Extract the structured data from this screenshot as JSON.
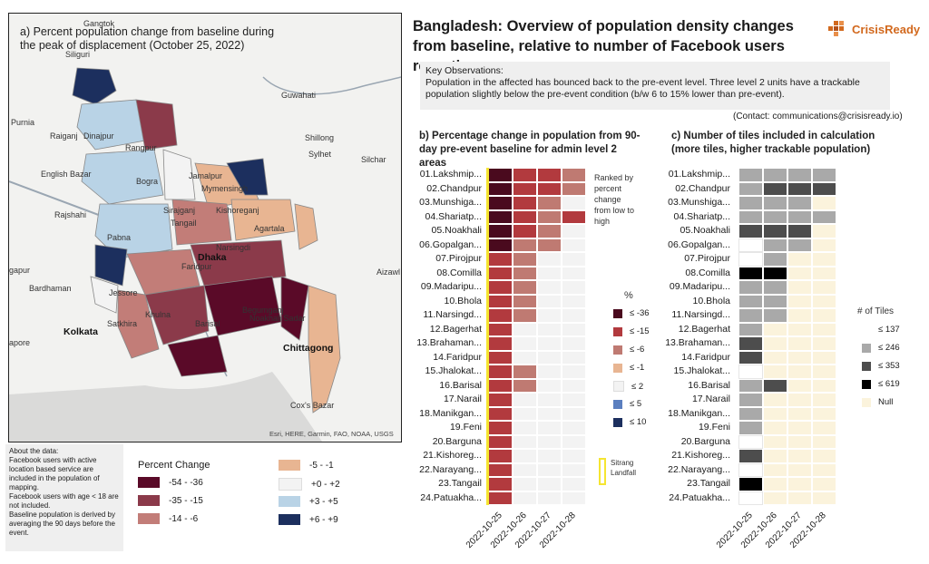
{
  "title": "Bangladesh: Overview of population density changes from baseline, relative to number of Facebook users reporting",
  "logo": {
    "text": "CrisisReady",
    "color": "#d2691e"
  },
  "observations": {
    "heading": "Key Observations:",
    "text": "Population in the affected has bounced back to the pre-event level. Three level 2 units have a trackable population slightly below the pre-event condition (b/w 6 to 15% lower than pre-event)."
  },
  "contact": "(Contact: communications@crisisready.io)",
  "map": {
    "title": "a) Percent population change from baseline during the peak of displacement (October 25, 2022)",
    "labels": [
      "Gangtok",
      "Siliguri",
      "Guwahati",
      "Purnia",
      "Rangpur",
      "Shillong",
      "Raiganj",
      "Dinajpur",
      "English Bazar",
      "Jamalpur",
      "Sylhet",
      "Silchar",
      "Bogra",
      "Mymensingh",
      "Rajshahi",
      "Sirajganj",
      "Tangail",
      "Kishoreganj",
      "Narsingdi",
      "Agartala",
      "Aizawl",
      "Pabna",
      "Dhaka",
      "Faridpur",
      "Jessore",
      "Bardhaman",
      "Khulna",
      "Begumganj",
      "Noakhali Sadar",
      "Satkhira",
      "Barisal",
      "Kolkata",
      "Chittagong",
      "Cox's Bazar",
      "gapur",
      "apore"
    ],
    "credit": "Esri, HERE, Garmin, FAO, NOAA, USGS",
    "legend_title": "Percent Change",
    "legend": [
      {
        "label": "-54 - -36",
        "color": "#5a0a28"
      },
      {
        "label": "-35 - -15",
        "color": "#8b3a4a"
      },
      {
        "label": "-14 - -6",
        "color": "#c27d78"
      },
      {
        "label": "-5 - -1",
        "color": "#e8b592"
      },
      {
        "label": "+0 - +2",
        "color": "#f3f3f3"
      },
      {
        "label": "+3 - +5",
        "color": "#b9d3e6"
      },
      {
        "label": "+6 - +9",
        "color": "#1c2f5e"
      }
    ]
  },
  "about": {
    "lines": [
      "About the data:",
      "Facebook users with active location based service are included in the population of mapping.",
      "Facebook users with age < 18 are not included.",
      "Baseline population is derived by averaging the 90 days before the event."
    ]
  },
  "chart_data": [
    {
      "type": "heatmap",
      "title": "b) Percentage change in population from 90-day pre-event baseline for admin level 2 areas",
      "rows": [
        "01.Lakshmip...",
        "02.Chandpur",
        "03.Munshiga...",
        "04.Shariatp...",
        "05.Noakhali",
        "06.Gopalgan...",
        "07.Pirojpur",
        "08.Comilla",
        "09.Madaripu...",
        "10.Bhola",
        "11.Narsingd...",
        "12.Bagerhat",
        "13.Brahaman...",
        "14.Faridpur",
        "15.Jhalokat...",
        "16.Barisal",
        "17.Narail",
        "18.Manikgan...",
        "19.Feni",
        "20.Barguna",
        "21.Kishoreg...",
        "22.Narayang...",
        "23.Tangail",
        "24.Patuakha..."
      ],
      "columns": [
        "2022-10-25",
        "2022-10-26",
        "2022-10-27",
        "2022-10-28"
      ],
      "values": [
        [
          -36,
          -15,
          -15,
          -6
        ],
        [
          -36,
          -15,
          -15,
          -6
        ],
        [
          -36,
          -15,
          -6,
          2
        ],
        [
          -36,
          -15,
          -6,
          -15
        ],
        [
          -36,
          -15,
          -6,
          2
        ],
        [
          -36,
          -6,
          -6,
          2
        ],
        [
          -15,
          -6,
          2,
          2
        ],
        [
          -15,
          -6,
          2,
          2
        ],
        [
          -15,
          -6,
          2,
          2
        ],
        [
          -15,
          -6,
          2,
          2
        ],
        [
          -15,
          -6,
          2,
          2
        ],
        [
          -15,
          2,
          2,
          2
        ],
        [
          -15,
          2,
          2,
          2
        ],
        [
          -15,
          2,
          2,
          2
        ],
        [
          -15,
          -6,
          2,
          2
        ],
        [
          -15,
          -6,
          2,
          2
        ],
        [
          -15,
          2,
          2,
          2
        ],
        [
          -15,
          2,
          2,
          2
        ],
        [
          -15,
          2,
          2,
          2
        ],
        [
          -15,
          2,
          2,
          2
        ],
        [
          -15,
          2,
          2,
          2
        ],
        [
          -15,
          2,
          2,
          2
        ],
        [
          -15,
          2,
          2,
          2
        ],
        [
          -15,
          2,
          2,
          2
        ]
      ],
      "note": "Ranked by percent change from low to high",
      "legend_title": "%",
      "legend": [
        {
          "label": "≤ -36",
          "color": "#4a0a1e"
        },
        {
          "label": "≤ -15",
          "color": "#b23a3e"
        },
        {
          "label": "≤ -6",
          "color": "#bf7a72"
        },
        {
          "label": "≤ -1",
          "color": "#e8b592"
        },
        {
          "label": "≤ 2",
          "color": "#f3f3f3"
        },
        {
          "label": "≤ 5",
          "color": "#5b7fbf"
        },
        {
          "label": "≤ 10",
          "color": "#1c2f5e"
        }
      ],
      "landfall_label": "Sitrang Landfall",
      "landfall_color": "#f5e531"
    },
    {
      "type": "heatmap",
      "title": "c) Number of tiles included in calculation (more tiles, higher trackable population)",
      "rows": [
        "01.Lakshmip...",
        "02.Chandpur",
        "03.Munshiga...",
        "04.Shariatp...",
        "05.Noakhali",
        "06.Gopalgan...",
        "07.Pirojpur",
        "08.Comilla",
        "09.Madaripu...",
        "10.Bhola",
        "11.Narsingd...",
        "12.Bagerhat",
        "13.Brahaman...",
        "14.Faridpur",
        "15.Jhalokat...",
        "16.Barisal",
        "17.Narail",
        "18.Manikgan...",
        "19.Feni",
        "20.Barguna",
        "21.Kishoreg...",
        "22.Narayang...",
        "23.Tangail",
        "24.Patuakha..."
      ],
      "columns": [
        "2022-10-25",
        "2022-10-26",
        "2022-10-27",
        "2022-10-28"
      ],
      "values": [
        [
          246,
          246,
          246,
          246
        ],
        [
          246,
          353,
          353,
          353
        ],
        [
          246,
          246,
          246,
          null
        ],
        [
          246,
          246,
          246,
          246
        ],
        [
          353,
          353,
          353,
          null
        ],
        [
          137,
          246,
          246,
          null
        ],
        [
          137,
          246,
          null,
          null
        ],
        [
          619,
          619,
          null,
          null
        ],
        [
          246,
          246,
          null,
          null
        ],
        [
          246,
          246,
          null,
          null
        ],
        [
          246,
          246,
          null,
          null
        ],
        [
          246,
          null,
          null,
          null
        ],
        [
          353,
          null,
          null,
          null
        ],
        [
          353,
          null,
          null,
          null
        ],
        [
          137,
          null,
          null,
          null
        ],
        [
          246,
          353,
          null,
          null
        ],
        [
          246,
          null,
          null,
          null
        ],
        [
          246,
          null,
          null,
          null
        ],
        [
          246,
          null,
          null,
          null
        ],
        [
          137,
          null,
          null,
          null
        ],
        [
          353,
          null,
          null,
          null
        ],
        [
          137,
          null,
          null,
          null
        ],
        [
          619,
          null,
          null,
          null
        ],
        [
          137,
          null,
          null,
          null
        ]
      ],
      "legend_title": "# of Tiles",
      "legend": [
        {
          "label": "≤ 137",
          "color": "#ffffff"
        },
        {
          "label": "≤ 246",
          "color": "#a9a9a9"
        },
        {
          "label": "≤ 353",
          "color": "#4d4d4d"
        },
        {
          "label": "≤ 619",
          "color": "#000000"
        },
        {
          "label": "Null",
          "color": "#fbf3dc"
        }
      ]
    }
  ]
}
